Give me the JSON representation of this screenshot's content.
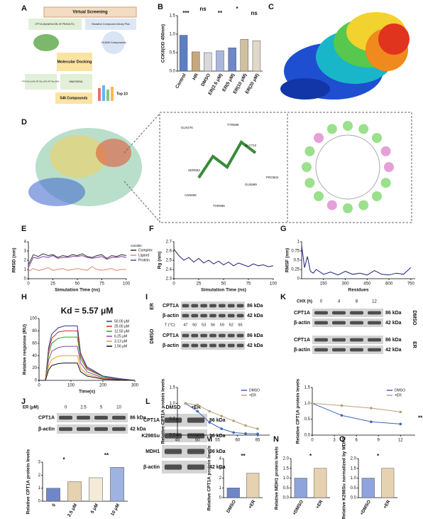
{
  "panel_labels": [
    "A",
    "B",
    "C",
    "D",
    "E",
    "F",
    "G",
    "H",
    "I",
    "J",
    "K",
    "L",
    "M",
    "N",
    "O"
  ],
  "screening": {
    "title": "Virtual Screening",
    "source": "CPT1A (AlphaFold DB, AF-P50416-F1)",
    "library": "Bioactive Compound Library Plus",
    "compounds": "24,606 Compounds",
    "docking": "Molecular Docking",
    "filters": "HTVS (Top 10%) SP (Top 10%) XP (Top 50%)",
    "mmgbsa": "MM/GBSA",
    "result": "546 Compounds",
    "top": "Top 10"
  },
  "docking_residues": [
    "GLN476",
    "TYR589",
    "GLY710",
    "SER593",
    "GLN589",
    "THR685",
    "ASN656",
    "PRO604"
  ],
  "blot_I": {
    "rows": [
      "CPT1A",
      "β-actin",
      "CPT1A",
      "β-actin"
    ],
    "sizes": [
      "86 kDa",
      "42 kDa",
      "86 kDa",
      "42 kDa"
    ],
    "groups": [
      "ER",
      "DMSO"
    ],
    "temp_label": "T (°C)",
    "temps": [
      47,
      50,
      53,
      56,
      59,
      62,
      65
    ]
  },
  "blot_K": {
    "label": "CHX (h)",
    "times": [
      0,
      4,
      8,
      12
    ],
    "rows": [
      "CPT1A",
      "β-actin",
      "CPT1A",
      "β-actin"
    ],
    "sizes": [
      "86 kDa",
      "42 kDa",
      "86 kDa",
      "42 kDa"
    ],
    "groups": [
      "DMSO",
      "ER"
    ]
  },
  "blot_J": {
    "label": "ER (μM)",
    "doses": [
      0,
      2.5,
      5,
      10
    ],
    "rows": [
      "CPT1A",
      "β-actin"
    ],
    "sizes": [
      "86 kDa",
      "42 kDa"
    ]
  },
  "blot_L": {
    "lanes": [
      "DMSO",
      "+ER"
    ],
    "rows": [
      "CPT1A",
      "K298Su",
      "MDH1",
      "β-actin"
    ],
    "sizes": [
      "86 kDa",
      "36 kDa",
      "36 kDa",
      "42 kDa"
    ]
  },
  "chart_data": [
    {
      "type": "bar",
      "ylabel": "CCK8(OD 450nm)",
      "categories": [
        "Control",
        "HR",
        "DMSO",
        "ER(2.5 μM)",
        "ER(5 μM)",
        "ER(10 μM)",
        "ER(20 μM)"
      ],
      "values": [
        0.97,
        0.52,
        0.5,
        0.55,
        0.63,
        0.86,
        0.82
      ],
      "colors": [
        "#5b7fc4",
        "#c8a77a",
        "#d8d8d8",
        "#a9b7de",
        "#6f87c9",
        "#cfc0a0",
        "#e0d8c8"
      ],
      "ylim": [
        0,
        1.5
      ],
      "yticks": [
        {
          "value": 0,
          "label": "0.0"
        },
        0.5,
        {
          "value": 1,
          "label": "1.0"
        },
        1.5
      ],
      "annotations": [
        "***",
        "ns",
        "**",
        "*",
        "ns"
      ]
    },
    {
      "type": "line",
      "ylabel": "RMSD (nm)",
      "xlabel": "Simulation Time (ns)",
      "legend_title": "variable",
      "legend": "right",
      "x": [
        0,
        5,
        10,
        15,
        20,
        25,
        30,
        35,
        40,
        45,
        50,
        55,
        60,
        65,
        70,
        75,
        80,
        85,
        90,
        95,
        100
      ],
      "xlim": [
        0,
        100
      ],
      "xticks": [
        0,
        25,
        50,
        75,
        100
      ],
      "ylim": [
        0,
        4
      ],
      "yticks": [
        0,
        1,
        2,
        3,
        4
      ],
      "series": [
        {
          "name": "Complex",
          "color": "#333333",
          "values": [
            1.5,
            2.6,
            2.4,
            2.7,
            2.5,
            2.6,
            2.3,
            2.5,
            2.4,
            2.6,
            2.5,
            2.7,
            2.4,
            2.3,
            2.5,
            2.6,
            2.2,
            2.5,
            2.4,
            2.6,
            2.5
          ]
        },
        {
          "name": "Ligand",
          "color": "#e3876a",
          "values": [
            0.8,
            1.1,
            0.9,
            1.0,
            1.2,
            0.9,
            1.0,
            1.1,
            0.9,
            1.0,
            1.1,
            1.0,
            0.9,
            1.3,
            1.0,
            0.9,
            1.0,
            1.1,
            0.9,
            1.0,
            1.0
          ]
        },
        {
          "name": "Protein",
          "color": "#7a3ea0",
          "values": [
            1.2,
            2.3,
            2.2,
            2.4,
            2.3,
            2.5,
            2.2,
            2.3,
            2.3,
            2.4,
            2.4,
            2.5,
            2.3,
            2.2,
            2.3,
            2.4,
            2.1,
            2.3,
            2.3,
            2.4,
            2.3
          ]
        }
      ]
    },
    {
      "type": "line",
      "ylabel": "Rg (nm)",
      "xlabel": "Simulation Time (ns)",
      "x": [
        0,
        5,
        10,
        15,
        20,
        25,
        30,
        35,
        40,
        45,
        50,
        55,
        60,
        65,
        70,
        75,
        80,
        85,
        90,
        95,
        100
      ],
      "xlim": [
        0,
        100
      ],
      "xticks": [
        0,
        25,
        50,
        75,
        100
      ],
      "ylim": [
        2.3,
        2.7
      ],
      "yticks": [
        2.3,
        2.4,
        2.5,
        2.6,
        2.7
      ],
      "color": "#1f1f7a",
      "values": [
        2.62,
        2.55,
        2.5,
        2.53,
        2.48,
        2.52,
        2.47,
        2.5,
        2.46,
        2.49,
        2.45,
        2.48,
        2.44,
        2.47,
        2.45,
        2.43,
        2.46,
        2.44,
        2.45,
        2.43,
        2.44
      ]
    },
    {
      "type": "line",
      "ylabel": "RMSF (nm)",
      "xlabel": "Residues",
      "x": [
        0,
        20,
        40,
        60,
        80,
        100,
        150,
        200,
        250,
        300,
        350,
        400,
        450,
        500,
        550,
        600,
        650,
        700,
        750
      ],
      "xlim": [
        0,
        780
      ],
      "xticks": [
        150,
        300,
        450,
        600,
        750
      ],
      "ylim": [
        0,
        1
      ],
      "yticks": [
        0,
        0.25,
        0.5,
        0.75,
        1
      ],
      "color": "#1f1f7a",
      "values": [
        0.9,
        0.3,
        0.6,
        0.2,
        0.15,
        0.25,
        0.12,
        0.18,
        0.1,
        0.2,
        0.12,
        0.15,
        0.1,
        0.22,
        0.12,
        0.1,
        0.15,
        0.12,
        0.3
      ]
    },
    {
      "type": "line",
      "title": "Kd = 5.57 μM",
      "ylabel": "Relative response (RU)",
      "xlabel": "Time(s)",
      "legend": "upper right",
      "x": [
        0,
        20,
        30,
        40,
        60,
        80,
        100,
        120,
        130,
        150,
        200,
        250,
        300
      ],
      "xlim": [
        0,
        300
      ],
      "xticks": [
        0,
        100,
        200,
        300
      ],
      "ylim": [
        0,
        100
      ],
      "yticks": [
        0,
        20,
        40,
        60,
        80,
        100
      ],
      "series": [
        {
          "name": "50.00 μM",
          "color": "#2b3a9a",
          "values": [
            0,
            0,
            53,
            75,
            85,
            88,
            88,
            88,
            44,
            22,
            7,
            3,
            0
          ]
        },
        {
          "name": "25.00 μM",
          "color": "#d62728",
          "values": [
            0,
            0,
            48,
            68,
            78,
            80,
            80,
            80,
            40,
            20,
            6,
            2,
            0
          ]
        },
        {
          "name": "12.50 μM",
          "color": "#2ca02c",
          "values": [
            0,
            0,
            42,
            60,
            68,
            70,
            70,
            70,
            35,
            18,
            6,
            2,
            0
          ]
        },
        {
          "name": "6.25 μM",
          "color": "#8e44ad",
          "values": [
            0,
            0,
            33,
            47,
            53,
            55,
            55,
            55,
            28,
            14,
            4,
            2,
            0
          ]
        },
        {
          "name": "3.13 μM",
          "color": "#f39c12",
          "values": [
            0,
            0,
            24,
            34,
            39,
            40,
            40,
            40,
            20,
            10,
            3,
            1,
            0
          ]
        },
        {
          "name": "1.56 μM",
          "color": "#111111",
          "values": [
            0,
            0,
            17,
            24,
            27,
            28,
            28,
            28,
            14,
            7,
            2,
            1,
            0
          ]
        }
      ]
    },
    {
      "type": "line",
      "ylabel": "Relative CPT1A protein levels",
      "legend": "upper right",
      "x": [
        47,
        50,
        53,
        56,
        59,
        62,
        65
      ],
      "xlim": [
        45,
        68
      ],
      "xticks": [
        45,
        50,
        55,
        60,
        65
      ],
      "ylim": [
        0,
        1.5
      ],
      "yticks": [
        {
          "value": 0,
          "label": "0.0"
        },
        0.5,
        {
          "value": 1,
          "label": "1.0"
        },
        1.5
      ],
      "series": [
        {
          "name": "DMSO",
          "color": "#3e64b8",
          "values": [
            1.0,
            0.75,
            0.4,
            0.2,
            0.08,
            0.05,
            0.04
          ]
        },
        {
          "name": "+ER",
          "color": "#b8a27a",
          "values": [
            1.0,
            0.95,
            0.75,
            0.6,
            0.45,
            0.3,
            0.2
          ]
        }
      ]
    },
    {
      "type": "line",
      "ylabel": "Relative CPT1A protein levels",
      "legend": "upper right",
      "annotations": [
        "**"
      ],
      "x": [
        0,
        4,
        8,
        12
      ],
      "xlim": [
        0,
        14
      ],
      "xticks": [
        0,
        3,
        6,
        9,
        12
      ],
      "ylim": [
        0,
        1.5
      ],
      "yticks": [
        {
          "value": 0,
          "label": "0.0"
        },
        0.5,
        {
          "value": 1,
          "label": "1.0"
        },
        1.5
      ],
      "series": [
        {
          "name": "DMSO",
          "color": "#3e64b8",
          "values": [
            1.0,
            0.62,
            0.42,
            0.35
          ]
        },
        {
          "name": "+ER",
          "color": "#b8a27a",
          "values": [
            1.0,
            0.93,
            0.85,
            0.73
          ]
        }
      ]
    },
    {
      "type": "bar",
      "ylabel": "Relative CPT1A protein levels",
      "categories": [
        "0",
        "2.5 μM",
        "5 μM",
        "10 μM"
      ],
      "values": [
        1.0,
        1.5,
        1.8,
        2.6
      ],
      "colors": [
        "#6f87c9",
        "#e6d2b0",
        "#f3ead8",
        "#9fb3e0"
      ],
      "ylim": [
        0,
        3
      ],
      "yticks": [
        0,
        1,
        2,
        3
      ],
      "annotations": [
        "*",
        "**"
      ]
    },
    {
      "type": "bar",
      "ylabel": "Relative CPT1A protein levels",
      "categories": [
        "DMSO",
        "+ER"
      ],
      "values": [
        1.0,
        2.5
      ],
      "colors": [
        "#6f87c9",
        "#e6d2b0"
      ],
      "ylim": [
        0,
        4
      ],
      "yticks": [
        0,
        1,
        2,
        3,
        4
      ],
      "annotations": [
        "**"
      ]
    },
    {
      "type": "bar",
      "ylabel": "Relative MDH1 protein levels",
      "categories": [
        "+DMSO",
        "+ER"
      ],
      "values": [
        1.0,
        1.5
      ],
      "colors": [
        "#8fa3dc",
        "#e6d2b0"
      ],
      "ylim": [
        0,
        2
      ],
      "yticks": [
        {
          "value": 0,
          "label": "0.0"
        },
        0.5,
        {
          "value": 1,
          "label": "1.0"
        },
        1.5,
        {
          "value": 2,
          "label": "2.0"
        }
      ],
      "annotations": [
        "*"
      ]
    },
    {
      "type": "bar",
      "ylabel": "Relative K298Su normalized by MDH1",
      "categories": [
        "+DMSO",
        "+ER"
      ],
      "values": [
        1.0,
        1.5
      ],
      "colors": [
        "#8fa3dc",
        "#e6d2b0"
      ],
      "ylim": [
        0,
        2
      ],
      "yticks": [
        {
          "value": 0,
          "label": "0.0"
        },
        0.5,
        {
          "value": 1,
          "label": "1.0"
        },
        1.5,
        {
          "value": 2,
          "label": "2.0"
        }
      ],
      "annotations": [
        "*"
      ]
    }
  ]
}
